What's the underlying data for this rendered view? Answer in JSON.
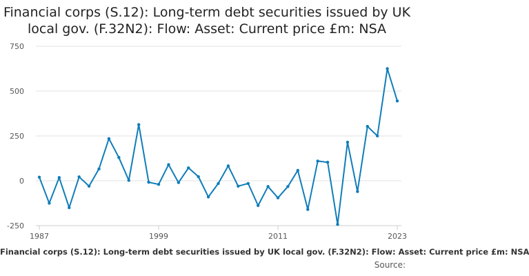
{
  "chart_data": {
    "type": "line",
    "title": "Financial corps (S.12): Long-term debt securities issued by UK local gov. (F.32N2): Flow: Asset: Current price £m: NSA",
    "legend_label": "Financial corps (S.12): Long-term debt securities issued by UK local gov. (F.32N2): Flow: Asset: Current price £m: NSA",
    "source_label": "Source:",
    "xlabel": "",
    "ylabel": "",
    "x_tick_labels": [
      "1987",
      "1999",
      "2011",
      "2023"
    ],
    "y_tick_labels": [
      "-250",
      "0",
      "250",
      "500",
      "750"
    ],
    "x_range": [
      1987,
      2023
    ],
    "ylim": [
      -250,
      750
    ],
    "grid": true,
    "line_color": "#0f7db9",
    "series": [
      {
        "x": [
          1987,
          1988,
          1989,
          1990,
          1991,
          1992,
          1993,
          1994,
          1995,
          1996,
          1997,
          1998,
          1999,
          2000,
          2001,
          2002,
          2003,
          2004,
          2005,
          2006,
          2007,
          2008,
          2009,
          2010,
          2011,
          2012,
          2013,
          2014,
          2015,
          2016,
          2017,
          2018,
          2019,
          2020,
          2021,
          2022,
          2023
        ],
        "values": [
          20,
          -125,
          18,
          -150,
          22,
          -30,
          66,
          235,
          130,
          2,
          313,
          -8,
          -20,
          90,
          -10,
          72,
          23,
          -90,
          -15,
          83,
          -30,
          -15,
          -138,
          -32,
          -95,
          -32,
          58,
          -160,
          110,
          103,
          -243,
          215,
          -60,
          303,
          250,
          625,
          445
        ]
      }
    ]
  }
}
